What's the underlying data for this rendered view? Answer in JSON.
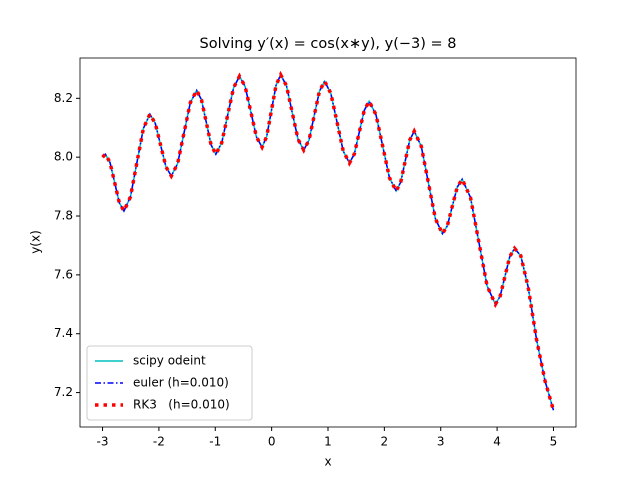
{
  "chart_data": {
    "type": "line",
    "title": "Solving y′(x) = cos(x∗y),  y(−3) = 8",
    "x_label": "x",
    "y_label": "y(x)",
    "x": [
      -3.0,
      -2.95,
      -2.868,
      -2.785,
      -2.703,
      -2.62,
      -2.505,
      -2.39,
      -2.275,
      -2.16,
      -2.065,
      -1.97,
      -1.875,
      -1.78,
      -1.668,
      -1.555,
      -1.443,
      -1.33,
      -1.245,
      -1.16,
      -1.075,
      -0.99,
      -0.885,
      -0.78,
      -0.675,
      -0.57,
      -0.47,
      -0.37,
      -0.27,
      -0.17,
      -0.088,
      -0.005,
      0.078,
      0.16,
      0.263,
      0.365,
      0.468,
      0.57,
      0.663,
      0.755,
      0.848,
      0.94,
      1.05,
      1.16,
      1.27,
      1.38,
      1.468,
      1.555,
      1.643,
      1.73,
      1.85,
      1.97,
      2.09,
      2.21,
      2.29,
      2.37,
      2.45,
      2.53,
      2.655,
      2.78,
      2.905,
      3.03,
      3.118,
      3.205,
      3.293,
      3.38,
      3.528,
      3.675,
      3.823,
      3.97,
      4.055,
      4.14,
      4.225,
      4.31,
      4.42,
      4.55,
      4.7,
      4.85,
      5.0
    ],
    "series": [
      {
        "name": "scipy odeint",
        "color": "#00bfbf",
        "style": "solid",
        "values": [
          8.0,
          8.01,
          7.982,
          7.914,
          7.845,
          7.817,
          7.865,
          7.982,
          8.098,
          8.146,
          8.115,
          8.041,
          7.967,
          7.936,
          7.978,
          8.082,
          8.185,
          8.227,
          8.195,
          8.119,
          8.042,
          8.01,
          8.049,
          8.143,
          8.236,
          8.275,
          8.24,
          8.155,
          8.069,
          8.034,
          8.07,
          8.157,
          8.244,
          8.28,
          8.243,
          8.152,
          8.061,
          8.024,
          8.058,
          8.141,
          8.224,
          8.258,
          8.217,
          8.119,
          8.021,
          7.98,
          8.011,
          8.085,
          8.159,
          8.19,
          8.145,
          8.038,
          7.93,
          7.885,
          7.915,
          7.987,
          8.058,
          8.088,
          8.037,
          7.914,
          7.791,
          7.74,
          7.767,
          7.833,
          7.898,
          7.925,
          7.863,
          7.713,
          7.562,
          7.5,
          7.528,
          7.595,
          7.662,
          7.69,
          7.665,
          7.56,
          7.38,
          7.24,
          7.14
        ]
      },
      {
        "name": "euler (h=0.010)",
        "color": "#0000ff",
        "style": "dashdot",
        "values": [
          8.0,
          8.01,
          7.982,
          7.914,
          7.845,
          7.817,
          7.865,
          7.982,
          8.098,
          8.146,
          8.115,
          8.041,
          7.967,
          7.936,
          7.978,
          8.082,
          8.185,
          8.227,
          8.195,
          8.119,
          8.042,
          8.01,
          8.049,
          8.143,
          8.236,
          8.275,
          8.24,
          8.155,
          8.069,
          8.034,
          8.07,
          8.157,
          8.244,
          8.28,
          8.243,
          8.152,
          8.061,
          8.024,
          8.058,
          8.141,
          8.224,
          8.258,
          8.217,
          8.119,
          8.021,
          7.98,
          8.011,
          8.085,
          8.159,
          8.19,
          8.145,
          8.038,
          7.93,
          7.885,
          7.915,
          7.987,
          8.058,
          8.088,
          8.037,
          7.914,
          7.791,
          7.74,
          7.767,
          7.833,
          7.898,
          7.925,
          7.863,
          7.713,
          7.562,
          7.5,
          7.528,
          7.595,
          7.662,
          7.69,
          7.665,
          7.56,
          7.38,
          7.24,
          7.14
        ]
      },
      {
        "name": "RK3   (h=0.010)",
        "color": "#ff0000",
        "style": "dotted",
        "values": [
          8.0,
          8.01,
          7.982,
          7.914,
          7.845,
          7.817,
          7.865,
          7.982,
          8.098,
          8.146,
          8.115,
          8.041,
          7.967,
          7.936,
          7.978,
          8.082,
          8.185,
          8.227,
          8.195,
          8.119,
          8.042,
          8.01,
          8.049,
          8.143,
          8.236,
          8.275,
          8.24,
          8.155,
          8.069,
          8.034,
          8.07,
          8.157,
          8.244,
          8.28,
          8.243,
          8.152,
          8.061,
          8.024,
          8.058,
          8.141,
          8.224,
          8.258,
          8.217,
          8.119,
          8.021,
          7.98,
          8.011,
          8.085,
          8.159,
          8.19,
          8.145,
          8.038,
          7.93,
          7.885,
          7.915,
          7.987,
          8.058,
          8.088,
          8.037,
          7.914,
          7.791,
          7.74,
          7.767,
          7.833,
          7.898,
          7.925,
          7.863,
          7.713,
          7.562,
          7.5,
          7.528,
          7.595,
          7.662,
          7.69,
          7.665,
          7.56,
          7.38,
          7.24,
          7.14
        ]
      }
    ],
    "xlim": [
      -3.4,
      5.4
    ],
    "xticks": [
      -3,
      -2,
      -1,
      0,
      1,
      2,
      3,
      4,
      5
    ],
    "ylim": [
      7.083,
      8.337
    ],
    "yticks": [
      7.2,
      7.4,
      7.6,
      7.8,
      {
        "value": 8,
        "label": "8.0"
      },
      8.2
    ],
    "legend": "lower left",
    "grid": false
  }
}
